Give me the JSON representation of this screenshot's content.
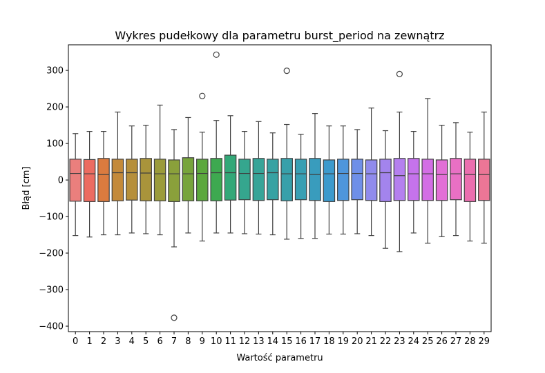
{
  "chart_data": {
    "type": "box",
    "title": "Wykres pudełkowy dla parametru burst_period na zewnątrz",
    "xlabel": "Wartość parametru",
    "ylabel": "Błąd [cm]",
    "ylim": [
      -415,
      370
    ],
    "yticks": [
      300,
      200,
      100,
      0,
      -100,
      -200,
      -300,
      -400
    ],
    "ytick_labels": [
      "300",
      "200",
      "100",
      "0",
      "−100",
      "−200",
      "−300",
      "−400"
    ],
    "categories": [
      "0",
      "1",
      "2",
      "3",
      "4",
      "5",
      "6",
      "7",
      "8",
      "9",
      "10",
      "11",
      "12",
      "13",
      "14",
      "15",
      "16",
      "17",
      "18",
      "19",
      "20",
      "21",
      "22",
      "23",
      "24",
      "25",
      "26",
      "27",
      "28",
      "29"
    ],
    "colors": [
      "#ea7f7d",
      "#ec6c61",
      "#db7b3f",
      "#c48a3a",
      "#b68f3b",
      "#a9943b",
      "#9b9b3a",
      "#8aa03b",
      "#77a43b",
      "#5ca83c",
      "#3ea950",
      "#33a878",
      "#35a68e",
      "#37a498",
      "#37a2a3",
      "#37a0aa",
      "#389fb3",
      "#399cbd",
      "#3c9acd",
      "#4e96dc",
      "#6f8fe8",
      "#908bec",
      "#a384ed",
      "#b580ef",
      "#c573ec",
      "#d36ee5",
      "#e26fd6",
      "#e970c4",
      "#eb6eaf",
      "#ec7696"
    ],
    "boxes": [
      {
        "q1": -58,
        "median": 18,
        "q3": 57,
        "whislo": -152,
        "whishi": 127,
        "fliers": []
      },
      {
        "q1": -59,
        "median": 17,
        "q3": 56,
        "whislo": -156,
        "whishi": 133,
        "fliers": []
      },
      {
        "q1": -59,
        "median": 15,
        "q3": 59,
        "whislo": -150,
        "whishi": 133,
        "fliers": []
      },
      {
        "q1": -57,
        "median": 20,
        "q3": 57,
        "whislo": -150,
        "whishi": 186,
        "fliers": []
      },
      {
        "q1": -55,
        "median": 20,
        "q3": 57,
        "whislo": -145,
        "whishi": 148,
        "fliers": []
      },
      {
        "q1": -57,
        "median": 19,
        "q3": 59,
        "whislo": -147,
        "whishi": 150,
        "fliers": []
      },
      {
        "q1": -57,
        "median": 17,
        "q3": 57,
        "whislo": -150,
        "whishi": 205,
        "fliers": []
      },
      {
        "q1": -59,
        "median": 17,
        "q3": 55,
        "whislo": -183,
        "whishi": 138,
        "fliers": [
          -377
        ]
      },
      {
        "q1": -57,
        "median": 17,
        "q3": 61,
        "whislo": -145,
        "whishi": 171,
        "fliers": []
      },
      {
        "q1": -57,
        "median": 18,
        "q3": 57,
        "whislo": -167,
        "whishi": 131,
        "fliers": [
          230
        ]
      },
      {
        "q1": -57,
        "median": 20,
        "q3": 59,
        "whislo": -145,
        "whishi": 163,
        "fliers": [
          343
        ]
      },
      {
        "q1": -55,
        "median": 20,
        "q3": 68,
        "whislo": -145,
        "whishi": 176,
        "fliers": []
      },
      {
        "q1": -54,
        "median": 18,
        "q3": 57,
        "whislo": -147,
        "whishi": 133,
        "fliers": []
      },
      {
        "q1": -56,
        "median": 18,
        "q3": 59,
        "whislo": -148,
        "whishi": 160,
        "fliers": []
      },
      {
        "q1": -54,
        "median": 20,
        "q3": 57,
        "whislo": -150,
        "whishi": 129,
        "fliers": []
      },
      {
        "q1": -57,
        "median": 17,
        "q3": 59,
        "whislo": -162,
        "whishi": 152,
        "fliers": [
          299
        ]
      },
      {
        "q1": -54,
        "median": 17,
        "q3": 57,
        "whislo": -160,
        "whishi": 125,
        "fliers": []
      },
      {
        "q1": -56,
        "median": 15,
        "q3": 59,
        "whislo": -160,
        "whishi": 182,
        "fliers": []
      },
      {
        "q1": -59,
        "median": 17,
        "q3": 55,
        "whislo": -148,
        "whishi": 148,
        "fliers": []
      },
      {
        "q1": -56,
        "median": 18,
        "q3": 57,
        "whislo": -148,
        "whishi": 148,
        "fliers": []
      },
      {
        "q1": -54,
        "median": 18,
        "q3": 57,
        "whislo": -147,
        "whishi": 138,
        "fliers": []
      },
      {
        "q1": -56,
        "median": 17,
        "q3": 55,
        "whislo": -152,
        "whishi": 197,
        "fliers": []
      },
      {
        "q1": -59,
        "median": 20,
        "q3": 57,
        "whislo": -187,
        "whishi": 135,
        "fliers": []
      },
      {
        "q1": -56,
        "median": 12,
        "q3": 59,
        "whislo": -196,
        "whishi": 186,
        "fliers": [
          290
        ]
      },
      {
        "q1": -56,
        "median": 17,
        "q3": 59,
        "whislo": -145,
        "whishi": 133,
        "fliers": []
      },
      {
        "q1": -56,
        "median": 17,
        "q3": 57,
        "whislo": -173,
        "whishi": 223,
        "fliers": []
      },
      {
        "q1": -56,
        "median": 15,
        "q3": 55,
        "whislo": -155,
        "whishi": 150,
        "fliers": []
      },
      {
        "q1": -54,
        "median": 17,
        "q3": 59,
        "whislo": -152,
        "whishi": 157,
        "fliers": []
      },
      {
        "q1": -59,
        "median": 15,
        "q3": 57,
        "whislo": -167,
        "whishi": 131,
        "fliers": []
      },
      {
        "q1": -56,
        "median": 15,
        "q3": 57,
        "whislo": -173,
        "whishi": 186,
        "fliers": []
      }
    ]
  }
}
